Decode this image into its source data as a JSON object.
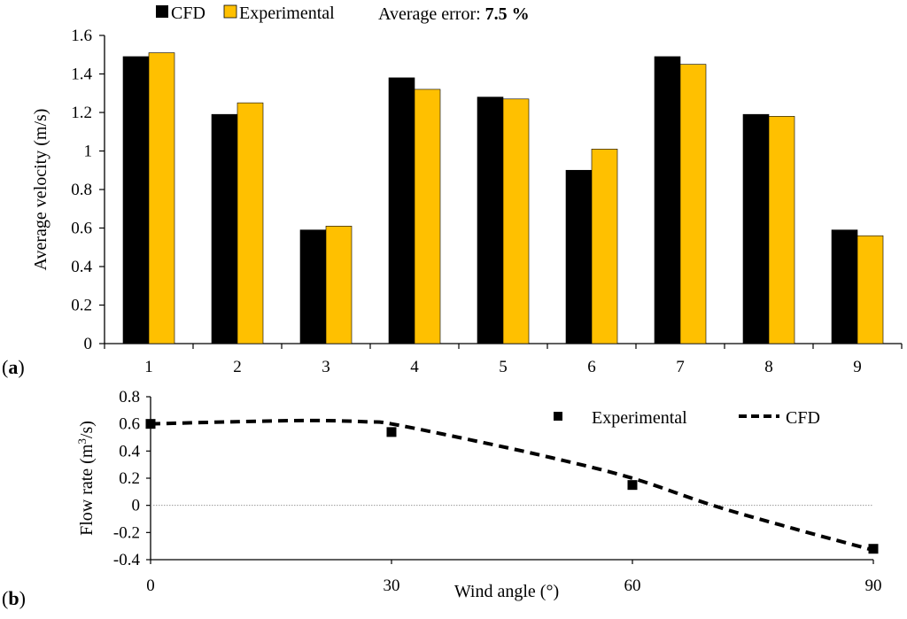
{
  "colors": {
    "cfd": "#000000",
    "experimental": "#ffc000",
    "zero_line": "#9a9a9a"
  },
  "panels": {
    "a": {
      "open": "(",
      "letter": "a",
      "close": ")"
    },
    "b": {
      "open": "(",
      "letter": "b",
      "close": ")"
    }
  },
  "chart_data": [
    {
      "type": "bar",
      "categories": [
        "1",
        "2",
        "3",
        "4",
        "5",
        "6",
        "7",
        "8",
        "9"
      ],
      "series": [
        {
          "name": "CFD",
          "values": [
            1.49,
            1.19,
            0.59,
            1.38,
            1.28,
            0.9,
            1.49,
            1.19,
            0.59
          ]
        },
        {
          "name": "Experimental",
          "values": [
            1.51,
            1.25,
            0.61,
            1.32,
            1.27,
            1.01,
            1.45,
            1.18,
            0.56
          ]
        }
      ],
      "annotation": {
        "label": "Average error: ",
        "value": "7.5 %"
      },
      "xlabel": "",
      "ylabel": "Average velocity (m/s)",
      "ylim": [
        0,
        1.6
      ],
      "yticks": [
        "0",
        "0.2",
        "0.4",
        "0.6",
        "0.8",
        "1",
        "1.2",
        "1.4",
        "1.6"
      ],
      "grid": false,
      "legend": "top-left"
    },
    {
      "type": "scatter",
      "xlabel": "Wind angle (°)",
      "ylabel": {
        "pre": "Flow rate (m",
        "sup": "3",
        "post": "/s)"
      },
      "xlim": [
        0,
        90
      ],
      "ylim": [
        -0.4,
        0.8
      ],
      "xticks": [
        "0",
        "30",
        "60",
        "90"
      ],
      "yticks": [
        "-0.4",
        "-0.2",
        "0",
        "0.2",
        "0.4",
        "0.6",
        "0.8"
      ],
      "series": [
        {
          "name": "Experimental",
          "style": "square-markers",
          "points": [
            [
              0,
              0.6
            ],
            [
              30,
              0.54
            ],
            [
              60,
              0.15
            ],
            [
              90,
              -0.32
            ]
          ]
        },
        {
          "name": "CFD",
          "style": "dashed-line",
          "points": [
            [
              0,
              0.6
            ],
            [
              10,
              0.615
            ],
            [
              20,
              0.625
            ],
            [
              27,
              0.615
            ],
            [
              30,
              0.6
            ],
            [
              40,
              0.48
            ],
            [
              50,
              0.35
            ],
            [
              60,
              0.2
            ],
            [
              70,
              0.0
            ],
            [
              80,
              -0.17
            ],
            [
              90,
              -0.33
            ]
          ]
        }
      ],
      "legend": "top-right"
    }
  ]
}
